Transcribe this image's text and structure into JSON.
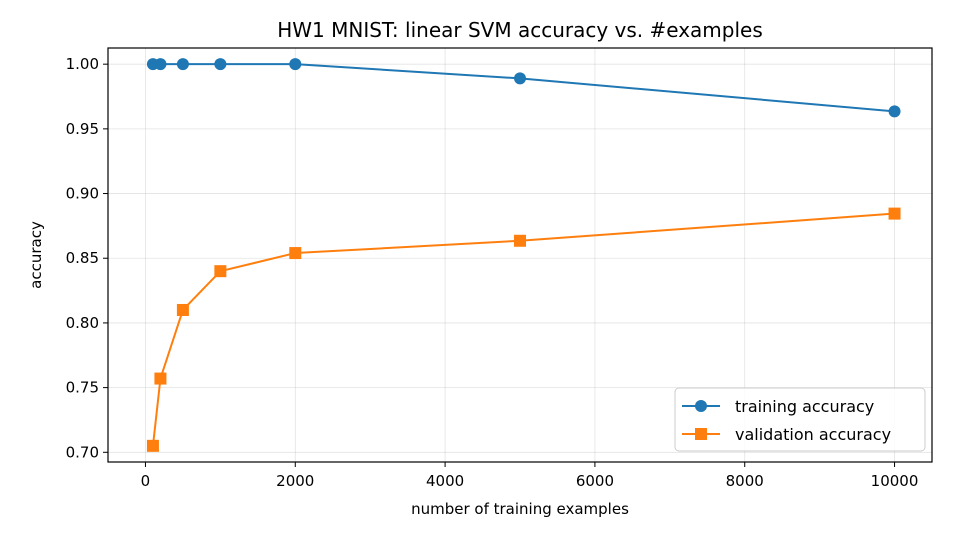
{
  "chart_data": {
    "type": "line",
    "title": "HW1 MNIST: linear SVM accuracy vs. #examples",
    "xlabel": "number of training examples",
    "ylabel": "accuracy",
    "xlim": [
      -500,
      10500
    ],
    "ylim": [
      0.6925,
      1.0125
    ],
    "xticks": [
      0,
      2000,
      4000,
      6000,
      8000,
      10000
    ],
    "xtick_labels": [
      "0",
      "2000",
      "4000",
      "6000",
      "8000",
      "10000"
    ],
    "yticks": [
      0.7,
      0.75,
      0.8,
      0.85,
      0.9,
      0.95,
      1.0
    ],
    "ytick_labels": [
      "0.70",
      "0.75",
      "0.80",
      "0.85",
      "0.90",
      "0.95",
      "1.00"
    ],
    "grid": true,
    "legend_position": "lower-right",
    "x": [
      100,
      200,
      500,
      1000,
      2000,
      5000,
      10000
    ],
    "series": [
      {
        "name": "training accuracy",
        "values": [
          1.0,
          1.0,
          1.0,
          1.0,
          1.0,
          0.989,
          0.9635
        ],
        "color": "#1f77b4",
        "marker": "circle"
      },
      {
        "name": "validation accuracy",
        "values": [
          0.705,
          0.757,
          0.81,
          0.84,
          0.854,
          0.8635,
          0.8845
        ],
        "color": "#ff7f0e",
        "marker": "square"
      }
    ]
  }
}
